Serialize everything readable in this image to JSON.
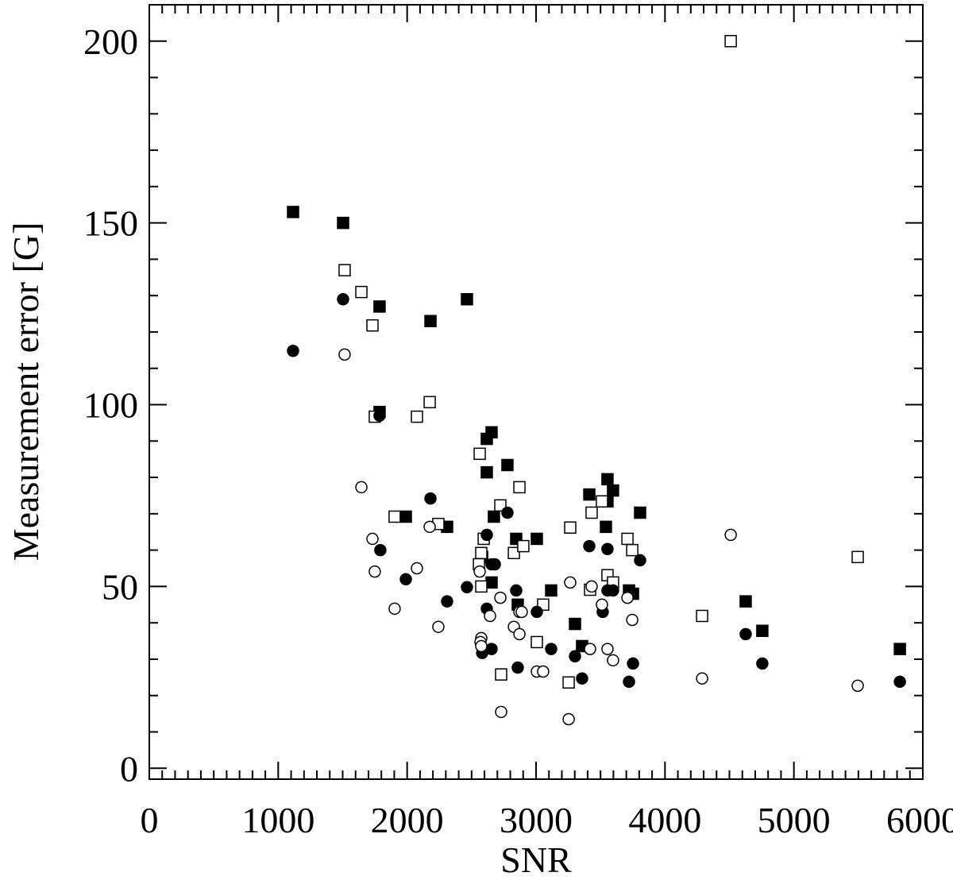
{
  "chart_data": {
    "type": "scatter",
    "x_label": "SNR",
    "y_label": "Measurement error [G]",
    "xlim": [
      0,
      6000
    ],
    "ylim": [
      -3,
      210
    ],
    "xticks": [
      0,
      1000,
      2000,
      3000,
      4000,
      5000,
      6000
    ],
    "yticks": [
      0,
      50,
      100,
      150,
      200
    ],
    "grid": false,
    "series": [
      {
        "marker": "square",
        "filled": true,
        "color": "#000000",
        "x": [
          1115,
          1503,
          1786,
          1786,
          2181,
          2464,
          1990,
          2310,
          2618,
          2655,
          2618,
          2778,
          2673,
          2846,
          3006,
          2582,
          2655,
          2858,
          3117,
          3302,
          3357,
          3413,
          3542,
          3554,
          3597,
          3554,
          3807,
          3721,
          3752,
          4626,
          4755,
          5822
        ],
        "y": [
          153,
          150,
          127,
          98,
          123,
          129,
          69.2,
          66.4,
          90.6,
          92.4,
          81.4,
          83.4,
          69.2,
          63.1,
          63.1,
          58.1,
          51.1,
          45,
          48.9,
          39.7,
          33.6,
          75.3,
          66.4,
          79.5,
          76.4,
          73.4,
          70.3,
          48.9,
          48,
          45.9,
          37.8,
          32.8
        ]
      },
      {
        "marker": "square",
        "filled": false,
        "color": "#000000",
        "x": [
          4510,
          1515,
          1645,
          1731,
          1749,
          2076,
          2175,
          2563,
          2871,
          2723,
          1903,
          2242,
          3265,
          2594,
          3431,
          3511,
          3709,
          3746,
          5495,
          2575,
          2557,
          2828,
          2901,
          2575,
          3419,
          3554,
          3597,
          3055,
          3006,
          2729,
          3253,
          4288
        ],
        "y": [
          200,
          137,
          131,
          121.8,
          96.7,
          96.7,
          100.7,
          86.5,
          77.3,
          72.3,
          69.2,
          67.2,
          66.2,
          63.1,
          70.3,
          73.4,
          63.1,
          60,
          58.1,
          59.2,
          56.1,
          59.2,
          61.1,
          50,
          49.1,
          53.1,
          51.1,
          45,
          34.7,
          25.8,
          23.6,
          41.9
        ]
      },
      {
        "marker": "circle",
        "filled": true,
        "color": "#000000",
        "x": [
          1115,
          1503,
          1786,
          2181,
          1792,
          1990,
          2310,
          2464,
          2618,
          2655,
          2680,
          2618,
          2778,
          2846,
          3006,
          2582,
          2655,
          2858,
          3117,
          3302,
          3357,
          3413,
          3554,
          3597,
          3554,
          3517,
          3807,
          3721,
          3752,
          4626,
          4755,
          5822
        ],
        "y": [
          114.8,
          129,
          97,
          74.2,
          60,
          52,
          45.9,
          49.8,
          64.2,
          56.1,
          56.1,
          43.9,
          70.3,
          48.9,
          43,
          31.7,
          32.8,
          27.7,
          32.8,
          30.8,
          24.7,
          61.1,
          60.3,
          48.9,
          48.9,
          43,
          57.2,
          23.8,
          28.8,
          36.9,
          28.8,
          23.8
        ]
      },
      {
        "marker": "circle",
        "filled": false,
        "color": "#000000",
        "x": [
          1515,
          1645,
          1731,
          1749,
          2076,
          2175,
          1903,
          2242,
          2563,
          2723,
          2871,
          2889,
          2828,
          2871,
          2643,
          2575,
          2569,
          2575,
          3006,
          3055,
          2729,
          3253,
          3265,
          3431,
          3511,
          3709,
          3746,
          3419,
          3554,
          3597,
          4510,
          4288,
          5495
        ],
        "y": [
          113.8,
          77.3,
          63.1,
          54.1,
          55,
          66.4,
          43.9,
          38.9,
          54.1,
          46.9,
          43,
          43,
          38.9,
          36.9,
          41.9,
          35.8,
          34.7,
          33.6,
          26.6,
          26.6,
          15.5,
          13.5,
          51.1,
          50,
          45,
          46.9,
          40.8,
          32.8,
          32.8,
          29.7,
          64.2,
          24.7,
          22.7
        ]
      }
    ]
  }
}
